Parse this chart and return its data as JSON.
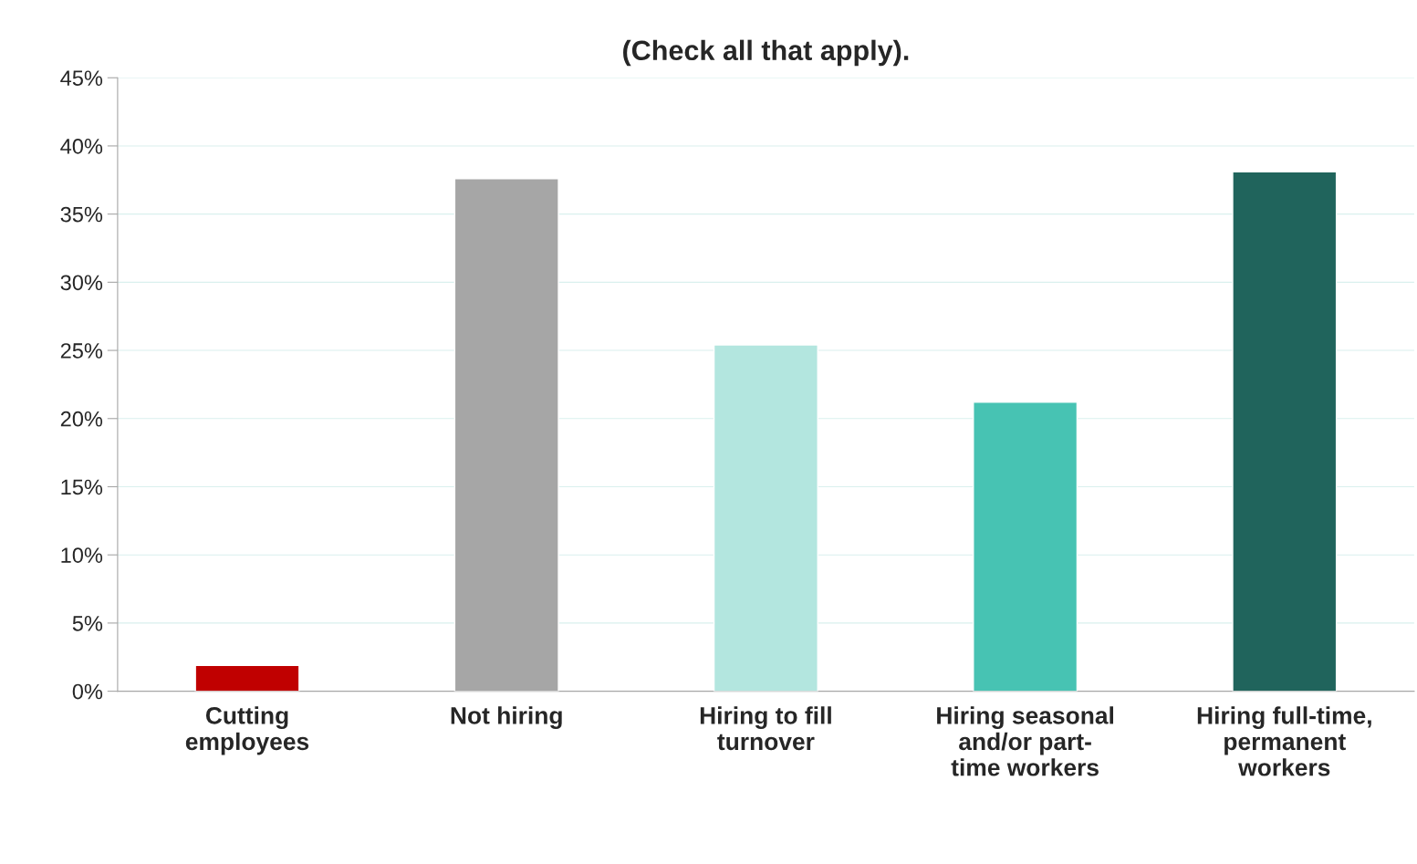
{
  "chart_data": {
    "type": "bar",
    "title": "(Check all that apply).",
    "categories": [
      "Cutting\nemployees",
      "Not hiring",
      "Hiring to fill\nturnover",
      "Hiring seasonal\nand/or part-\ntime workers",
      "Hiring full-time,\npermanent\nworkers"
    ],
    "values": [
      1.9,
      37.6,
      25.4,
      21.2,
      38.1
    ],
    "colors": [
      "#c00000",
      "#a6a6a6",
      "#b3e6df",
      "#47c3b3",
      "#20645c"
    ],
    "ylim": [
      0,
      45
    ],
    "yticks": [
      {
        "value": 0,
        "label": "0%"
      },
      {
        "value": 5,
        "label": "5%"
      },
      {
        "value": 10,
        "label": "10%"
      },
      {
        "value": 15,
        "label": "15%"
      },
      {
        "value": 20,
        "label": "20%"
      },
      {
        "value": 25,
        "label": "25%"
      },
      {
        "value": 30,
        "label": "30%"
      },
      {
        "value": 35,
        "label": "35%"
      },
      {
        "value": 40,
        "label": "40%"
      },
      {
        "value": 45,
        "label": "45%"
      }
    ],
    "grid": "y",
    "legend": false
  }
}
